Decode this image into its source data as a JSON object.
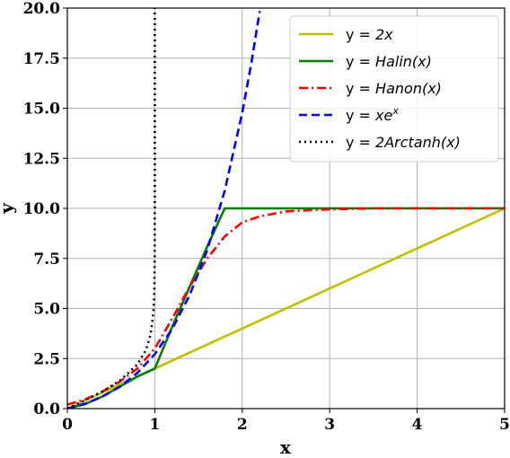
{
  "chart_data": {
    "type": "line",
    "xlabel": "x",
    "ylabel": "y",
    "xlim": [
      0,
      5
    ],
    "ylim": [
      0,
      20
    ],
    "x_ticks": [
      "0",
      "1",
      "2",
      "3",
      "4",
      "5"
    ],
    "y_ticks": [
      "0.0",
      "2.5",
      "5.0",
      "7.5",
      "10.0",
      "12.5",
      "15.0",
      "17.5",
      "20.0"
    ],
    "grid": true,
    "legend_position": "top-right",
    "series": [
      {
        "name": "y = 2x",
        "color": "#bfbf00",
        "style": "solid",
        "x": [
          0,
          1,
          5
        ],
        "y": [
          0.0,
          2.0,
          10.0
        ]
      },
      {
        "name": "y = Halin(x)",
        "color": "#008000",
        "style": "solid",
        "x": [
          0,
          0.2,
          0.4,
          0.6,
          0.8,
          1.0,
          1.2,
          1.4,
          1.6,
          1.8,
          2.0,
          3.0,
          4.0,
          5.0
        ],
        "y": [
          0.0,
          0.22,
          0.6,
          1.1,
          1.6,
          2.0,
          4.1,
          6.1,
          8.1,
          10.0,
          10.0,
          10.0,
          10.0,
          10.0
        ]
      },
      {
        "name": "y = Hanon(x)",
        "color": "#ff0000",
        "style": "dashdot",
        "x": [
          0,
          0.2,
          0.4,
          0.6,
          0.8,
          1.0,
          1.2,
          1.4,
          1.6,
          1.8,
          2.0,
          2.2,
          2.5,
          3.0,
          3.5,
          4.0,
          5.0
        ],
        "y": [
          0.2,
          0.45,
          0.85,
          1.35,
          2.0,
          3.0,
          4.5,
          6.1,
          7.5,
          8.6,
          9.3,
          9.6,
          9.85,
          9.95,
          10.0,
          10.0,
          10.0
        ]
      },
      {
        "name": "y = xe^x",
        "color": "#0000ff",
        "style": "dashed",
        "x": [
          0,
          0.2,
          0.4,
          0.6,
          0.8,
          1.0,
          1.2,
          1.4,
          1.6,
          1.8,
          2.0,
          2.1,
          2.2
        ],
        "y": [
          0.0,
          0.24,
          0.6,
          1.09,
          1.78,
          2.72,
          3.98,
          5.68,
          7.92,
          10.89,
          14.78,
          17.15,
          19.85
        ]
      },
      {
        "name": "y = 2Arctanh(x)",
        "color": "#000000",
        "style": "dotted",
        "x": [
          0,
          0.2,
          0.4,
          0.6,
          0.8,
          0.9,
          0.95,
          0.98,
          0.99,
          0.995,
          0.999,
          0.9999
        ],
        "y": [
          0.0,
          0.41,
          0.85,
          1.39,
          2.2,
          2.94,
          3.66,
          4.6,
          5.29,
          5.99,
          7.6,
          9.9
        ]
      },
      {
        "name": "y = 2Arctanh(x)",
        "color": "#000000",
        "style": "dotted",
        "x": [
          1.0,
          1.0
        ],
        "y": [
          10.0,
          20.0
        ],
        "legend": false
      }
    ]
  },
  "legend": [
    {
      "prefix": "y = ",
      "expr": "2x"
    },
    {
      "prefix": "y = ",
      "expr": "Halin(x)"
    },
    {
      "prefix": "y = ",
      "expr": "Hanon(x)"
    },
    {
      "prefix": "y = ",
      "expr": "xe",
      "sup": "x"
    },
    {
      "prefix": "y = ",
      "expr": "2Arctanh(x)"
    }
  ]
}
